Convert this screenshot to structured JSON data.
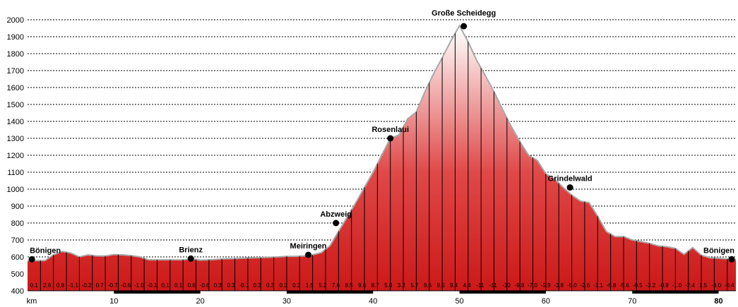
{
  "chart_data": {
    "type": "area",
    "title": "",
    "xlabel": "km",
    "ylabel": "",
    "xlim": [
      0,
      82
    ],
    "ylim": [
      400,
      2000
    ],
    "grid": true,
    "y_ticks": [
      400,
      500,
      600,
      700,
      800,
      900,
      1000,
      1100,
      1200,
      1300,
      1400,
      1500,
      1600,
      1700,
      1800,
      1900,
      2000
    ],
    "x_ticks": [
      {
        "value": 0,
        "label": "km",
        "bold": false
      },
      {
        "value": 10,
        "label": "10",
        "bold": false
      },
      {
        "value": 20,
        "label": "20",
        "bold": false
      },
      {
        "value": 30,
        "label": "30",
        "bold": false
      },
      {
        "value": 40,
        "label": "40",
        "bold": false
      },
      {
        "value": 50,
        "label": "50",
        "bold": false
      },
      {
        "value": 60,
        "label": "60",
        "bold": false
      },
      {
        "value": 70,
        "label": "70",
        "bold": false
      },
      {
        "value": 80,
        "label": "80",
        "bold": true
      }
    ],
    "profile": {
      "x": [
        0,
        2,
        3,
        4,
        5,
        6,
        7,
        8,
        9,
        10,
        11,
        12,
        13,
        14,
        15,
        16,
        17,
        18,
        19,
        20,
        21,
        22,
        23,
        24,
        25,
        26,
        27,
        28,
        29,
        30,
        31,
        32,
        33,
        34,
        35,
        36,
        37,
        38,
        39,
        40,
        41,
        42,
        43,
        44,
        45,
        46,
        47,
        48,
        49,
        50,
        51,
        52,
        53,
        54,
        55,
        56,
        57,
        58,
        59,
        60,
        61,
        62,
        63,
        64,
        65,
        66,
        67,
        68,
        69,
        70,
        71,
        72,
        73,
        74,
        75,
        76,
        77,
        78,
        79,
        80,
        81,
        82
      ],
      "y": [
        578,
        578,
        612,
        632,
        623,
        600,
        612,
        606,
        605,
        614,
        612,
        607,
        600,
        583,
        583,
        583,
        583,
        583,
        588,
        581,
        583,
        586,
        589,
        590,
        592,
        594,
        596,
        598,
        600,
        603,
        603,
        606,
        612,
        625,
        665,
        750,
        835,
        920,
        1010,
        1100,
        1200,
        1300,
        1320,
        1415,
        1455,
        1575,
        1680,
        1775,
        1875,
        1965,
        1870,
        1760,
        1670,
        1575,
        1470,
        1370,
        1280,
        1200,
        1170,
        1090,
        1060,
        1010,
        965,
        930,
        920,
        840,
        750,
        720,
        720,
        700,
        690,
        680,
        665,
        660,
        650,
        615,
        655,
        610,
        595,
        592,
        588,
        585
      ]
    },
    "gradients": [
      "0.1",
      "2.6",
      "0.8",
      "-1.1",
      "-0.2",
      "0.7",
      "-0.7",
      "-0.6",
      "-1.0",
      "-0.1",
      "0.1",
      "0.1",
      "0.6",
      "-0.6",
      "0.3",
      "0.3",
      "-0.1",
      "0.3",
      "0.3",
      "0.3",
      "0.3",
      "1.5",
      "5.2",
      "7.6",
      "8.5",
      "9.6",
      "8.7",
      "5.0",
      "3.2",
      "5.7",
      "9.6",
      "9.5",
      "9.4",
      "4.4",
      "-11",
      "-11",
      "-10",
      "-9.8",
      "-7.0",
      "-5.9",
      "-3.8",
      "-5.0",
      "-2.6",
      "-1.1",
      "-6.8",
      "-5.6",
      "-0.5",
      "-3.2",
      "-0.9",
      "-1.0",
      "-2.4",
      "1.5",
      "-3.0",
      "-0.4"
    ],
    "waypoints": [
      {
        "name": "Bönigen",
        "x": 0.5,
        "y": 586
      },
      {
        "name": "Brienz",
        "x": 18.9,
        "y": 590
      },
      {
        "name": "Meiringen",
        "x": 32.5,
        "y": 612
      },
      {
        "name": "Abzweig",
        "x": 35.7,
        "y": 800
      },
      {
        "name": "Rosenlaui",
        "x": 42.0,
        "y": 1300
      },
      {
        "name": "Große Scheidegg",
        "x": 50.5,
        "y": 1962
      },
      {
        "name": "Grindelwald",
        "x": 62.8,
        "y": 1010
      },
      {
        "name": "Bönigen",
        "x": 82.0,
        "y": 586
      }
    ],
    "colors": {
      "fill_top": "#ffffff",
      "fill_mid": "#e04848",
      "fill_bottom": "#cc1818",
      "outline": "#a8a8a8",
      "grid": "#000000"
    }
  }
}
